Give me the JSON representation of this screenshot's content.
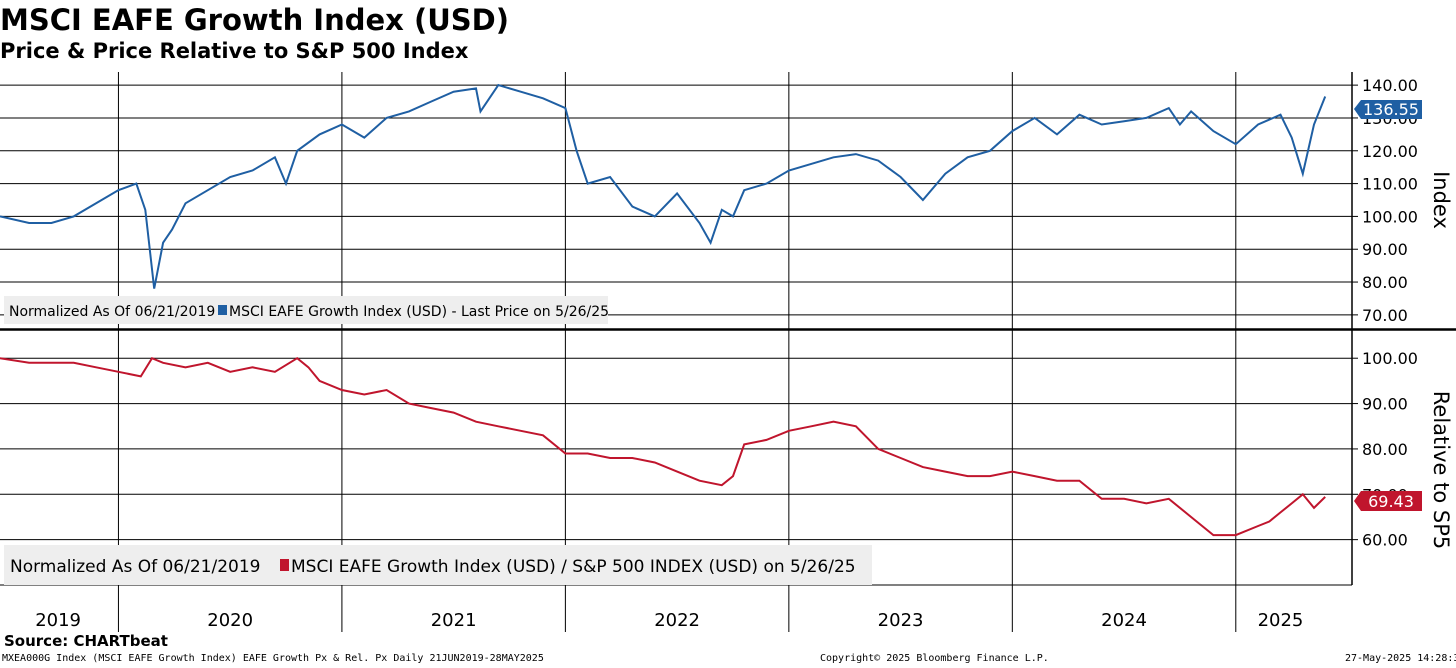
{
  "header": {
    "title": "MSCI EAFE Growth Index (USD)",
    "subtitle": "Price & Price Relative to S&P 500 Index"
  },
  "colors": {
    "price": "#1f5fa3",
    "relative": "#c0152d",
    "grid": "#000000",
    "legend_bg": "#eeeeee"
  },
  "chart_data": [
    {
      "type": "line",
      "name": "price",
      "ylabel": "Index",
      "ylim": [
        66,
        144
      ],
      "yticks": [
        70,
        80,
        90,
        100,
        110,
        120,
        130,
        140
      ],
      "ytick_labels": [
        "70.00",
        "80.00",
        "90.00",
        "100.00",
        "110.00",
        "120.00",
        "130.00",
        "140.00"
      ],
      "last_value_label": "136.55",
      "legend_left": "Normalized As Of 06/21/2019",
      "legend_right": "MSCI EAFE Growth Index (USD) - Last Price on 5/26/25",
      "series": [
        {
          "name": "MSCI EAFE Growth Index (USD)",
          "x": [
            2019.47,
            2019.6,
            2019.7,
            2019.8,
            2019.9,
            2020.0,
            2020.08,
            2020.12,
            2020.16,
            2020.2,
            2020.24,
            2020.3,
            2020.4,
            2020.5,
            2020.6,
            2020.7,
            2020.75,
            2020.8,
            2020.9,
            2021.0,
            2021.1,
            2021.2,
            2021.3,
            2021.4,
            2021.5,
            2021.6,
            2021.62,
            2021.7,
            2021.8,
            2021.9,
            2022.0,
            2022.05,
            2022.1,
            2022.2,
            2022.3,
            2022.4,
            2022.5,
            2022.6,
            2022.65,
            2022.7,
            2022.75,
            2022.8,
            2022.9,
            2023.0,
            2023.1,
            2023.2,
            2023.3,
            2023.4,
            2023.5,
            2023.6,
            2023.7,
            2023.8,
            2023.9,
            2024.0,
            2024.1,
            2024.2,
            2024.3,
            2024.4,
            2024.5,
            2024.6,
            2024.7,
            2024.75,
            2024.8,
            2024.9,
            2025.0,
            2025.1,
            2025.2,
            2025.25,
            2025.3,
            2025.35,
            2025.4
          ],
          "values": [
            100,
            98,
            98,
            100,
            104,
            108,
            110,
            102,
            78,
            92,
            96,
            104,
            108,
            112,
            114,
            118,
            110,
            120,
            125,
            128,
            124,
            130,
            132,
            135,
            138,
            139,
            132,
            140,
            138,
            136,
            133,
            120,
            110,
            112,
            103,
            100,
            107,
            98,
            92,
            102,
            100,
            108,
            110,
            114,
            116,
            118,
            119,
            117,
            112,
            105,
            113,
            118,
            120,
            126,
            130,
            125,
            131,
            128,
            129,
            130,
            133,
            128,
            132,
            126,
            122,
            128,
            131,
            124,
            113,
            128,
            136.55
          ]
        }
      ]
    },
    {
      "type": "line",
      "name": "relative",
      "ylabel": "Relative to SP5",
      "ylim": [
        50,
        106
      ],
      "yticks": [
        60,
        70,
        80,
        90,
        100
      ],
      "ytick_labels": [
        "60.00",
        "70.00",
        "80.00",
        "90.00",
        "100.00"
      ],
      "last_value_label": "69.43",
      "legend_left": "Normalized As Of 06/21/2019",
      "legend_right": "MSCI EAFE Growth Index (USD) / S&P 500 INDEX (USD) on 5/26/25",
      "series": [
        {
          "name": "MSCI EAFE Growth Index (USD) / S&P 500 INDEX (USD)",
          "x": [
            2019.47,
            2019.6,
            2019.7,
            2019.8,
            2019.9,
            2020.0,
            2020.1,
            2020.15,
            2020.2,
            2020.3,
            2020.4,
            2020.5,
            2020.6,
            2020.7,
            2020.8,
            2020.85,
            2020.9,
            2021.0,
            2021.1,
            2021.2,
            2021.3,
            2021.4,
            2021.5,
            2021.6,
            2021.7,
            2021.8,
            2021.9,
            2022.0,
            2022.1,
            2022.2,
            2022.3,
            2022.4,
            2022.5,
            2022.6,
            2022.7,
            2022.75,
            2022.8,
            2022.9,
            2023.0,
            2023.1,
            2023.2,
            2023.3,
            2023.4,
            2023.5,
            2023.6,
            2023.7,
            2023.8,
            2023.9,
            2024.0,
            2024.1,
            2024.2,
            2024.3,
            2024.4,
            2024.5,
            2024.6,
            2024.7,
            2024.8,
            2024.9,
            2025.0,
            2025.1,
            2025.15,
            2025.2,
            2025.25,
            2025.3,
            2025.35,
            2025.4
          ],
          "values": [
            100,
            99,
            99,
            99,
            98,
            97,
            96,
            100,
            99,
            98,
            99,
            97,
            98,
            97,
            100,
            98,
            95,
            93,
            92,
            93,
            90,
            89,
            88,
            86,
            85,
            84,
            83,
            79,
            79,
            78,
            78,
            77,
            75,
            73,
            72,
            74,
            81,
            82,
            84,
            85,
            86,
            85,
            80,
            78,
            76,
            75,
            74,
            74,
            75,
            74,
            73,
            73,
            69,
            69,
            68,
            69,
            65,
            61,
            61,
            63,
            64,
            66,
            68,
            70,
            67,
            69.43
          ]
        }
      ]
    }
  ],
  "x_axis": {
    "labels": [
      "2019",
      "2020",
      "2021",
      "2022",
      "2023",
      "2024",
      "2025"
    ],
    "label_x": [
      2019.73,
      2020.5,
      2021.5,
      2022.5,
      2023.5,
      2024.5,
      2025.2
    ],
    "gridlines": [
      2020,
      2021,
      2022,
      2023,
      2024,
      2025
    ],
    "xlim": [
      2019.47,
      2025.52
    ]
  },
  "footer": {
    "source": "Source: CHARTbeat",
    "left": "MXEA000G Index (MSCI EAFE Growth Index) EAFE Growth Px & Rel. Px  Daily 21JUN2019-28MAY2025",
    "center": "Copyright© 2025 Bloomberg Finance L.P.",
    "right": "27-May-2025 14:28:38"
  }
}
